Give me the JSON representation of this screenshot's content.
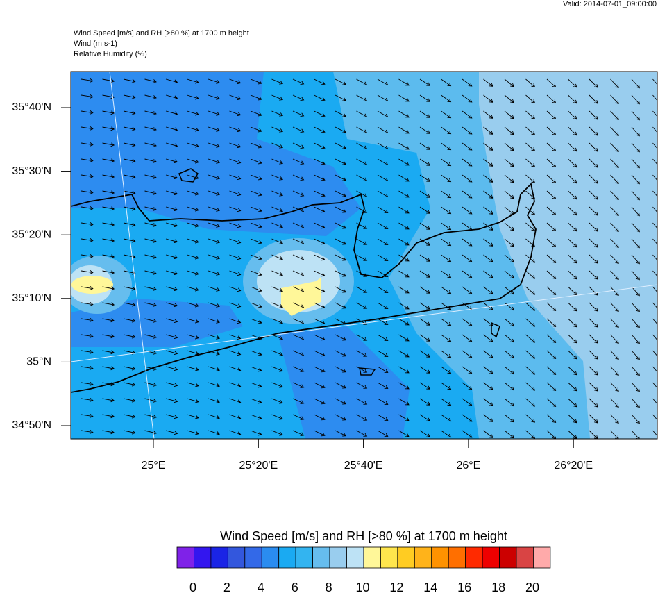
{
  "valid": "Valid: 2014-07-01_09:00:00",
  "header": {
    "lines": [
      "Wind Speed [m/s] and RH [>80 %] at 1700 m height",
      "Wind   (m s-1)",
      "Relative Humidity   (%)"
    ]
  },
  "map": {
    "lat_labels": [
      "35°40'N",
      "35°30'N",
      "35°20'N",
      "35°10'N",
      "35°N",
      "34°50'N"
    ],
    "lon_labels": [
      "25°E",
      "25°20'E",
      "25°40'E",
      "26°E",
      "26°20'E"
    ]
  },
  "colorbar": {
    "title": "Wind Speed [m/s] and RH [>80 %] at 1700 m height",
    "colors": [
      "#7f22e8",
      "#3316ef",
      "#1a24e6",
      "#3357dd",
      "#3369e8",
      "#2a8cf0",
      "#1aaaf2",
      "#33b4f0",
      "#66bdee",
      "#99cdee",
      "#bde2f5",
      "#fff799",
      "#ffe64d",
      "#ffcc22",
      "#ffb31a",
      "#ff9200",
      "#ff6f00",
      "#ff2a00",
      "#ee0000",
      "#cc0000",
      "#d94444",
      "#ffaaaa"
    ],
    "ticks": [
      0,
      2,
      4,
      6,
      8,
      10,
      12,
      14,
      16,
      18,
      20
    ]
  }
}
